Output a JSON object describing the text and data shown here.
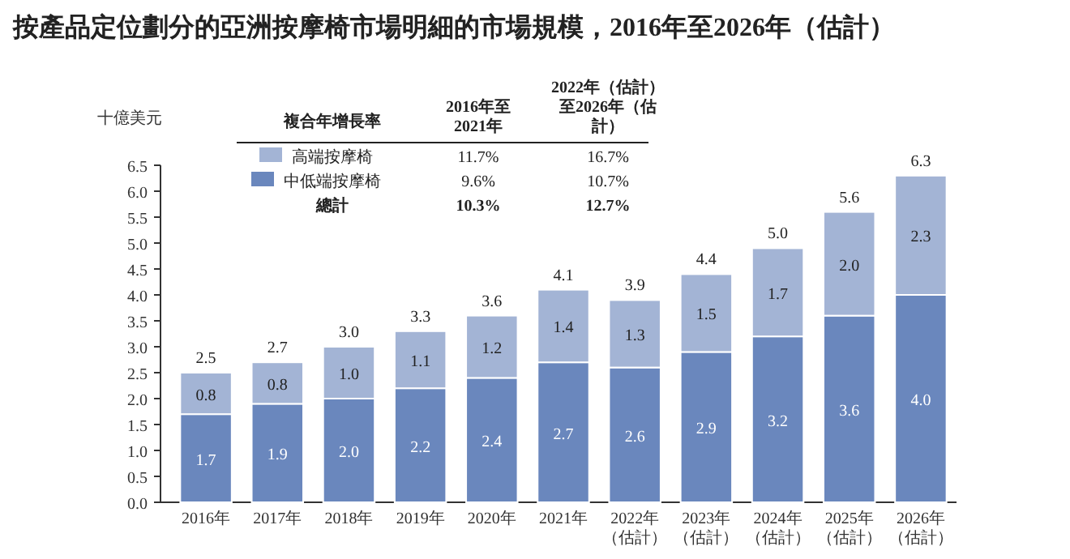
{
  "chart_data": {
    "type": "bar",
    "stacked": true,
    "title": "按產品定位劃分的亞洲按摩椅市場明細的市場規模，2016年至2026年（估計）",
    "ylabel": "十億美元",
    "categories": [
      "2016年",
      "2017年",
      "2018年",
      "2019年",
      "2020年",
      "2021年",
      "2022年（估計）",
      "2023年（估計）",
      "2024年（估計）",
      "2025年（估計）",
      "2026年（估計）"
    ],
    "series": [
      {
        "name": "中低端按摩椅",
        "color": "#6a87bd",
        "values": [
          1.7,
          1.9,
          2.0,
          2.2,
          2.4,
          2.7,
          2.6,
          2.9,
          3.2,
          3.6,
          4.0
        ],
        "value_labels": [
          "1.7",
          "1.9",
          "2.0",
          "2.2",
          "2.4",
          "2.7",
          "2.6",
          "2.9",
          "3.2",
          "3.6",
          "4.0"
        ]
      },
      {
        "name": "高端按摩椅",
        "color": "#a3b4d5",
        "values": [
          0.8,
          0.8,
          1.0,
          1.1,
          1.2,
          1.4,
          1.3,
          1.5,
          1.7,
          2.0,
          2.3
        ],
        "value_labels": [
          "0.8",
          "0.8",
          "1.0",
          "1.1",
          "1.2",
          "1.4",
          "1.3",
          "1.5",
          "1.7",
          "2.0",
          "2.3"
        ]
      }
    ],
    "totals": [
      "2.5",
      "2.7",
      "3.0",
      "3.3",
      "3.6",
      "4.1",
      "3.9",
      "4.4",
      "5.0",
      "5.6",
      "6.3"
    ],
    "ylim": [
      0,
      6.5
    ],
    "yticks": [
      {
        "value": 0,
        "label": "0.0"
      },
      {
        "value": 0.5,
        "label": "0.5"
      },
      {
        "value": 1,
        "label": "1.0"
      },
      {
        "value": 1.5,
        "label": "1.5"
      },
      {
        "value": 2,
        "label": "2.0"
      },
      {
        "value": 2.5,
        "label": "2.5"
      },
      {
        "value": 3,
        "label": "3.0"
      },
      {
        "value": 3.5,
        "label": "3.5"
      },
      {
        "value": 4,
        "label": "4.0"
      },
      {
        "value": 4.5,
        "label": "4.5"
      },
      {
        "value": 5,
        "label": "5.0"
      },
      {
        "value": 5.5,
        "label": "5.5"
      },
      {
        "value": 6,
        "label": "6.0"
      },
      {
        "value": 6.5,
        "label": "6.5"
      }
    ],
    "legend": "top left",
    "annotations": [
      "複合年增長率",
      "2016年至2021年",
      "2022年（估計）至2026年（估計）",
      "11.7%",
      "16.7%",
      "9.6%",
      "10.7%",
      "總計",
      "10.3%",
      "12.7%"
    ]
  }
}
